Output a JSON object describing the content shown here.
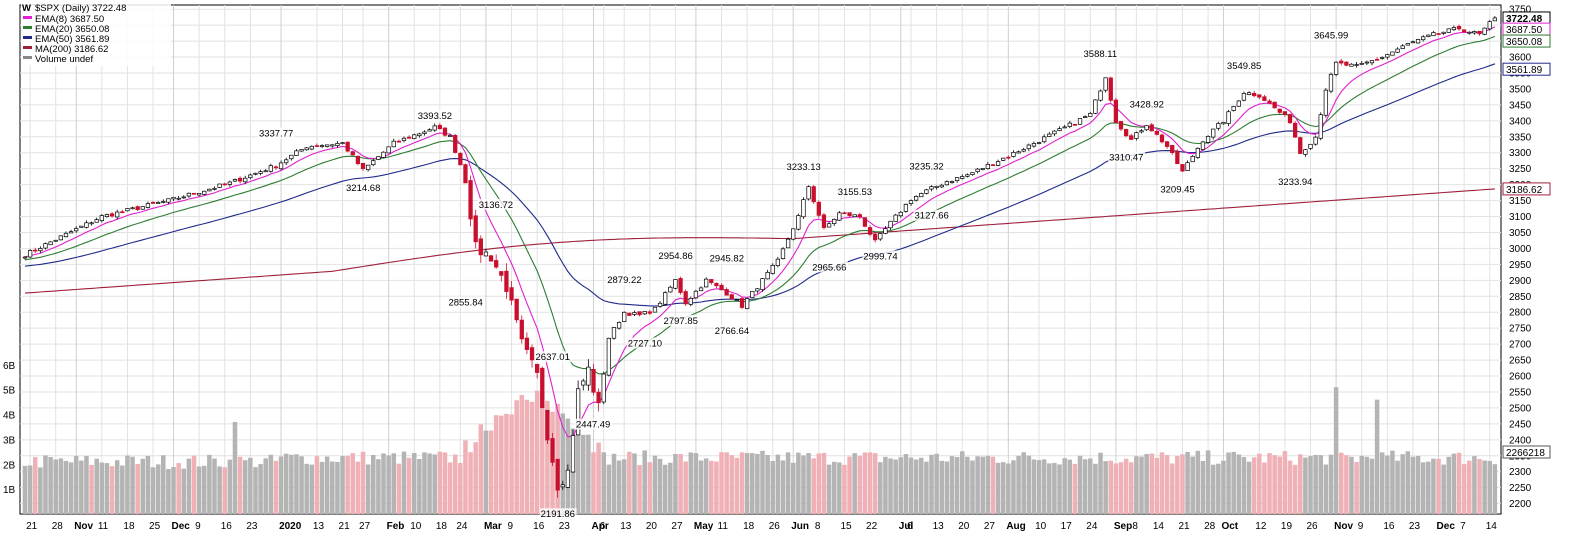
{
  "colors": {
    "up": "#000000",
    "down": "#c8102e",
    "vol_up": "#b4b4b4",
    "vol_down": "#efb1b6",
    "ema8": "#e020d0",
    "ema20": "#2e7d32",
    "ema50": "#1f2a8a",
    "ma200": "#a0203c",
    "grid": "#e2e2e2"
  },
  "chart_data": {
    "type": "candlestick",
    "title": "$SPX (Daily) 3722.48",
    "legend_placement": "top-left",
    "grid": true,
    "legend": [
      {
        "label": "EMA(8) 3687.50",
        "color": "#e020d0"
      },
      {
        "label": "EMA(20) 3650.08",
        "color": "#2e7d32"
      },
      {
        "label": "EMA(50) 3561.89",
        "color": "#1f2a8a"
      },
      {
        "label": "MA(200) 3186.62",
        "color": "#a0203c"
      },
      {
        "label": "Volume undef",
        "color": "#888888"
      }
    ],
    "ylim": [
      2180,
      3760
    ],
    "y_ticks": [
      2200,
      2250,
      2300,
      2350,
      2400,
      2450,
      2500,
      2550,
      2600,
      2650,
      2700,
      2750,
      2800,
      2850,
      2900,
      2950,
      3000,
      3050,
      3100,
      3150,
      3200,
      3250,
      3300,
      3350,
      3400,
      3450,
      3500,
      3550,
      3600,
      3650,
      3700,
      3750
    ],
    "y_tick_labels": [
      "2200",
      "2250",
      "2300",
      "2350",
      "2400",
      "2450",
      "2500",
      "2550",
      "2600",
      "2650",
      "2700",
      "2750",
      "2800",
      "2850",
      "2900",
      "2950",
      "3000",
      "3050",
      "3100",
      "3150",
      "3200",
      "3250",
      "3300",
      "3350",
      "3400",
      "3450",
      "3500",
      "3550",
      "3600",
      "3650",
      "3700",
      "3750"
    ],
    "volume_ticks": [
      {
        "label": "1B",
        "value": 1
      },
      {
        "label": "2B",
        "value": 2
      },
      {
        "label": "3B",
        "value": 3
      },
      {
        "label": "4B",
        "value": 4
      },
      {
        "label": "5B",
        "value": 5
      },
      {
        "label": "6B",
        "value": 6
      }
    ],
    "volume_scale_max": 7.4,
    "last_value_labels": [
      {
        "label": "3722.48",
        "value": 3722.48,
        "color": "#000000",
        "bold": true
      },
      {
        "label": "3687.50",
        "value": 3687.5,
        "color": "#e020d0"
      },
      {
        "label": "3650.08",
        "value": 3650.08,
        "color": "#2e7d32"
      },
      {
        "label": "3561.89",
        "value": 3561.89,
        "color": "#1f2a8a"
      },
      {
        "label": "3186.62",
        "value": 3186.62,
        "color": "#a0203c"
      },
      {
        "label": "2266218",
        "value": 2266,
        "color": "#555555"
      }
    ],
    "x_labels": [
      {
        "label": "21",
        "bar": 1,
        "major": false
      },
      {
        "label": "28",
        "bar": 6,
        "major": false
      },
      {
        "label": "Nov",
        "bar": 10,
        "major": true
      },
      {
        "label": "11",
        "bar": 15,
        "major": false
      },
      {
        "label": "18",
        "bar": 20,
        "major": false
      },
      {
        "label": "25",
        "bar": 25,
        "major": false
      },
      {
        "label": "Dec",
        "bar": 29,
        "major": true
      },
      {
        "label": "9",
        "bar": 34,
        "major": false
      },
      {
        "label": "16",
        "bar": 39,
        "major": false
      },
      {
        "label": "23",
        "bar": 44,
        "major": false
      },
      {
        "label": "2020",
        "bar": 50,
        "major": true
      },
      {
        "label": "13",
        "bar": 57,
        "major": false
      },
      {
        "label": "21",
        "bar": 62,
        "major": false
      },
      {
        "label": "27",
        "bar": 66,
        "major": false
      },
      {
        "label": "Feb",
        "bar": 71,
        "major": true
      },
      {
        "label": "10",
        "bar": 76,
        "major": false
      },
      {
        "label": "18",
        "bar": 81,
        "major": false
      },
      {
        "label": "24",
        "bar": 85,
        "major": false
      },
      {
        "label": "Mar",
        "bar": 90,
        "major": true
      },
      {
        "label": "9",
        "bar": 95,
        "major": false
      },
      {
        "label": "16",
        "bar": 100,
        "major": false
      },
      {
        "label": "23",
        "bar": 105,
        "major": false
      },
      {
        "label": "Apr",
        "bar": 111,
        "major": true
      },
      {
        "label": "6",
        "bar": 113,
        "major": false
      },
      {
        "label": "13",
        "bar": 117,
        "major": false
      },
      {
        "label": "20",
        "bar": 122,
        "major": false
      },
      {
        "label": "27",
        "bar": 127,
        "major": false
      },
      {
        "label": "May",
        "bar": 131,
        "major": true
      },
      {
        "label": "11",
        "bar": 136,
        "major": false
      },
      {
        "label": "18",
        "bar": 141,
        "major": false
      },
      {
        "label": "26",
        "bar": 146,
        "major": false
      },
      {
        "label": "Jun",
        "bar": 150,
        "major": true
      },
      {
        "label": "8",
        "bar": 155,
        "major": false
      },
      {
        "label": "15",
        "bar": 160,
        "major": false
      },
      {
        "label": "22",
        "bar": 165,
        "major": false
      },
      {
        "label": "Jul",
        "bar": 171,
        "major": true
      },
      {
        "label": "6",
        "bar": 173,
        "major": false
      },
      {
        "label": "13",
        "bar": 178,
        "major": false
      },
      {
        "label": "20",
        "bar": 183,
        "major": false
      },
      {
        "label": "27",
        "bar": 188,
        "major": false
      },
      {
        "label": "Aug",
        "bar": 192,
        "major": true
      },
      {
        "label": "10",
        "bar": 198,
        "major": false
      },
      {
        "label": "17",
        "bar": 203,
        "major": false
      },
      {
        "label": "24",
        "bar": 208,
        "major": false
      },
      {
        "label": "Sep",
        "bar": 213,
        "major": true
      },
      {
        "label": "8",
        "bar": 217,
        "major": false
      },
      {
        "label": "14",
        "bar": 221,
        "major": false
      },
      {
        "label": "21",
        "bar": 226,
        "major": false
      },
      {
        "label": "28",
        "bar": 231,
        "major": false
      },
      {
        "label": "Oct",
        "bar": 234,
        "major": true
      },
      {
        "label": "12",
        "bar": 241,
        "major": false
      },
      {
        "label": "19",
        "bar": 246,
        "major": false
      },
      {
        "label": "26",
        "bar": 251,
        "major": false
      },
      {
        "label": "Nov",
        "bar": 256,
        "major": true
      },
      {
        "label": "9",
        "bar": 261,
        "major": false
      },
      {
        "label": "16",
        "bar": 266,
        "major": false
      },
      {
        "label": "23",
        "bar": 271,
        "major": false
      },
      {
        "label": "Dec",
        "bar": 276,
        "major": true
      },
      {
        "label": "7",
        "bar": 281,
        "major": false
      },
      {
        "label": "14",
        "bar": 286,
        "major": false
      }
    ],
    "annotations": [
      {
        "label": "3337.77",
        "bar": 49,
        "value": 3337.77,
        "pos": "above"
      },
      {
        "label": "3393.52",
        "bar": 80,
        "value": 3393.52,
        "pos": "above"
      },
      {
        "label": "3214.68",
        "bar": 66,
        "value": 3214.68,
        "pos": "below"
      },
      {
        "label": "3136.72",
        "bar": 88,
        "value": 3136.72,
        "pos": "right"
      },
      {
        "label": "2855.84",
        "bar": 86,
        "value": 2855.84,
        "pos": "below"
      },
      {
        "label": "2637.01",
        "bar": 103,
        "value": 2637.01,
        "pos": "above"
      },
      {
        "label": "2447.49",
        "bar": 107,
        "value": 2447.49,
        "pos": "right"
      },
      {
        "label": "2191.86",
        "bar": 104,
        "value": 2191.86,
        "pos": "below"
      },
      {
        "label": "2879.22",
        "bar": 117,
        "value": 2879.22,
        "pos": "above"
      },
      {
        "label": "2727.10",
        "bar": 121,
        "value": 2727.1,
        "pos": "below"
      },
      {
        "label": "2954.86",
        "bar": 127,
        "value": 2954.86,
        "pos": "above"
      },
      {
        "label": "2797.85",
        "bar": 128,
        "value": 2797.85,
        "pos": "below"
      },
      {
        "label": "2945.82",
        "bar": 137,
        "value": 2945.82,
        "pos": "above"
      },
      {
        "label": "2766.64",
        "bar": 138,
        "value": 2766.64,
        "pos": "below"
      },
      {
        "label": "3233.13",
        "bar": 152,
        "value": 3233.13,
        "pos": "above"
      },
      {
        "label": "3155.53",
        "bar": 162,
        "value": 3155.53,
        "pos": "above"
      },
      {
        "label": "2965.66",
        "bar": 157,
        "value": 2965.66,
        "pos": "below"
      },
      {
        "label": "2999.74",
        "bar": 167,
        "value": 2999.74,
        "pos": "below"
      },
      {
        "label": "3235.32",
        "bar": 176,
        "value": 3235.32,
        "pos": "above"
      },
      {
        "label": "3127.66",
        "bar": 177,
        "value": 3127.66,
        "pos": "below"
      },
      {
        "label": "3588.11",
        "bar": 210,
        "value": 3588.11,
        "pos": "above"
      },
      {
        "label": "3428.92",
        "bar": 219,
        "value": 3428.92,
        "pos": "above"
      },
      {
        "label": "3310.47",
        "bar": 215,
        "value": 3310.47,
        "pos": "below"
      },
      {
        "label": "3209.45",
        "bar": 225,
        "value": 3209.45,
        "pos": "below"
      },
      {
        "label": "3549.85",
        "bar": 238,
        "value": 3549.85,
        "pos": "above"
      },
      {
        "label": "3233.94",
        "bar": 248,
        "value": 3233.94,
        "pos": "below"
      },
      {
        "label": "3645.99",
        "bar": 255,
        "value": 3645.99,
        "pos": "above"
      }
    ],
    "path_anchors": [
      [
        0,
        2980
      ],
      [
        15,
        3100
      ],
      [
        28,
        3150
      ],
      [
        40,
        3205
      ],
      [
        49,
        3260
      ],
      [
        55,
        3320
      ],
      [
        62,
        3330
      ],
      [
        66,
        3245
      ],
      [
        72,
        3330
      ],
      [
        80,
        3380
      ],
      [
        83,
        3350
      ],
      [
        86,
        3220
      ],
      [
        88,
        3000
      ],
      [
        91,
        2975
      ],
      [
        94,
        2880
      ],
      [
        97,
        2700
      ],
      [
        100,
        2600
      ],
      [
        102,
        2420
      ],
      [
        104,
        2260
      ],
      [
        106,
        2300
      ],
      [
        108,
        2550
      ],
      [
        110,
        2620
      ],
      [
        112,
        2500
      ],
      [
        114,
        2720
      ],
      [
        117,
        2800
      ],
      [
        120,
        2790
      ],
      [
        123,
        2810
      ],
      [
        127,
        2900
      ],
      [
        129,
        2830
      ],
      [
        133,
        2900
      ],
      [
        137,
        2860
      ],
      [
        140,
        2820
      ],
      [
        143,
        2880
      ],
      [
        147,
        2960
      ],
      [
        151,
        3100
      ],
      [
        153,
        3195
      ],
      [
        156,
        3060
      ],
      [
        159,
        3110
      ],
      [
        163,
        3100
      ],
      [
        166,
        3020
      ],
      [
        169,
        3080
      ],
      [
        173,
        3155
      ],
      [
        176,
        3180
      ],
      [
        180,
        3210
      ],
      [
        184,
        3230
      ],
      [
        188,
        3260
      ],
      [
        192,
        3290
      ],
      [
        197,
        3330
      ],
      [
        202,
        3370
      ],
      [
        208,
        3420
      ],
      [
        211,
        3540
      ],
      [
        213,
        3400
      ],
      [
        216,
        3340
      ],
      [
        219,
        3390
      ],
      [
        223,
        3320
      ],
      [
        226,
        3240
      ],
      [
        230,
        3340
      ],
      [
        234,
        3400
      ],
      [
        238,
        3490
      ],
      [
        241,
        3480
      ],
      [
        244,
        3440
      ],
      [
        247,
        3400
      ],
      [
        249,
        3300
      ],
      [
        252,
        3350
      ],
      [
        254,
        3500
      ],
      [
        256,
        3580
      ],
      [
        260,
        3570
      ],
      [
        265,
        3600
      ],
      [
        270,
        3640
      ],
      [
        275,
        3670
      ],
      [
        280,
        3690
      ],
      [
        284,
        3670
      ],
      [
        287,
        3722
      ]
    ],
    "bars_count": 288,
    "price_range": {
      "start": 2980,
      "end": 3722.48,
      "low": 2191.86,
      "high": 3722.48
    },
    "volume_profile": {
      "base": 2.2,
      "crash_peak": 4.6,
      "spikes": [
        {
          "bar": 41,
          "value": 3.7
        },
        {
          "bar": 256,
          "value": 5.1
        },
        {
          "bar": 264,
          "value": 4.6
        }
      ]
    }
  }
}
